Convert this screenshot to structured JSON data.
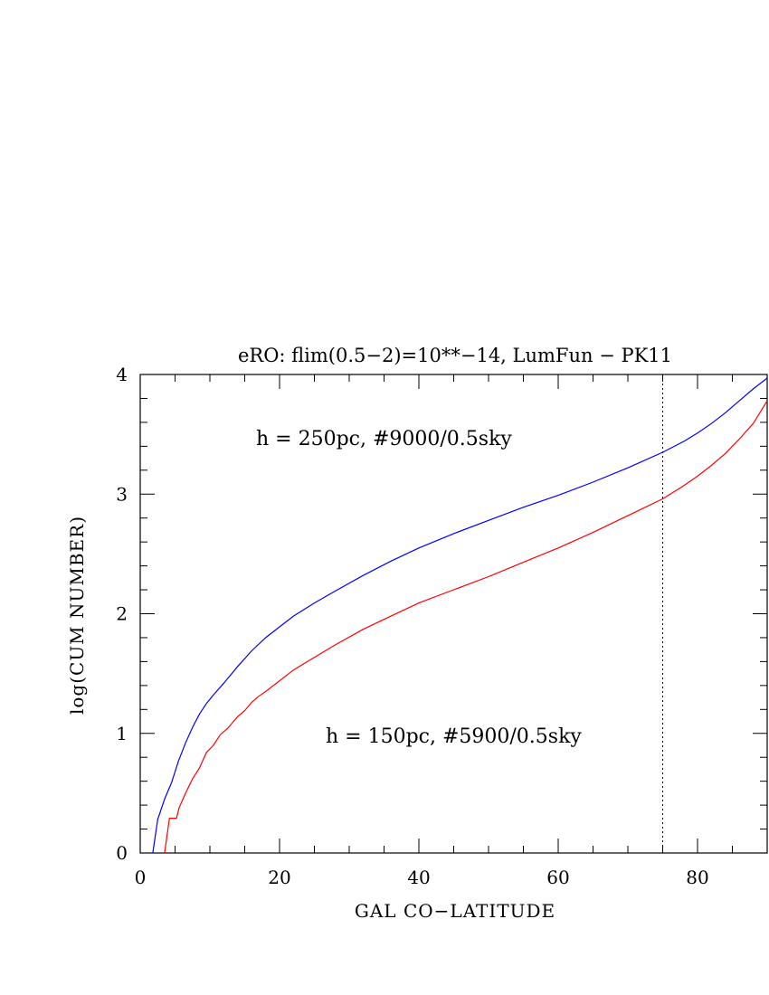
{
  "chart_data": {
    "type": "line",
    "title": "eRO:  flim(0.5−2)=10**−14,  LumFun  −  PK11",
    "xlabel": "GAL CO−LATITUDE",
    "ylabel": "log(CUM NUMBER)",
    "xlim": [
      0,
      90
    ],
    "ylim": [
      0,
      4
    ],
    "x_major_ticks": [
      0,
      20,
      40,
      60,
      80
    ],
    "x_tick_labels": [
      "0",
      "20",
      "40",
      "60",
      "80"
    ],
    "x_minor_step": 5,
    "y_major_ticks": [
      0,
      1,
      2,
      3,
      4
    ],
    "y_tick_labels": [
      "0",
      "1",
      "2",
      "3",
      "4"
    ],
    "y_minor_step": 0.2,
    "grid": false,
    "reference_line": {
      "x": 75,
      "style": "dotted",
      "color": "#000000"
    },
    "series": [
      {
        "color": "#0000ff",
        "x": [
          1.8,
          2.5,
          3.5,
          4.5,
          5.5,
          6.5,
          7.5,
          8.5,
          9.5,
          10.5,
          12,
          14,
          16,
          18,
          20,
          22,
          25,
          28,
          32,
          36,
          40,
          45,
          50,
          55,
          60,
          65,
          70,
          75,
          78,
          80,
          82,
          84,
          86,
          88,
          90
        ],
        "y": [
          0.0,
          0.28,
          0.45,
          0.59,
          0.77,
          0.92,
          1.05,
          1.16,
          1.25,
          1.32,
          1.42,
          1.56,
          1.69,
          1.8,
          1.89,
          1.98,
          2.09,
          2.19,
          2.32,
          2.44,
          2.55,
          2.67,
          2.78,
          2.89,
          2.99,
          3.1,
          3.22,
          3.35,
          3.44,
          3.51,
          3.59,
          3.68,
          3.78,
          3.88,
          3.97
        ]
      },
      {
        "color": "#ff0000",
        "x": [
          3.5,
          4.2,
          5.2,
          5.6,
          6.5,
          7.5,
          8.5,
          9.5,
          10.5,
          11.5,
          12.5,
          14,
          15,
          16,
          17,
          18,
          20,
          22,
          24,
          26,
          28,
          32,
          36,
          40,
          45,
          50,
          55,
          60,
          65,
          70,
          75,
          78,
          80,
          82,
          84,
          86,
          88,
          90
        ],
        "y": [
          0.0,
          0.29,
          0.29,
          0.38,
          0.5,
          0.62,
          0.71,
          0.84,
          0.9,
          0.99,
          1.04,
          1.14,
          1.19,
          1.26,
          1.31,
          1.35,
          1.44,
          1.53,
          1.6,
          1.67,
          1.74,
          1.87,
          1.98,
          2.09,
          2.2,
          2.31,
          2.43,
          2.55,
          2.68,
          2.82,
          2.96,
          3.07,
          3.15,
          3.24,
          3.34,
          3.46,
          3.59,
          3.78
        ]
      }
    ],
    "annotations": [
      {
        "text": "h  =  250pc,  #9000/0.5sky",
        "color": "#0000ff"
      },
      {
        "text": "h  =  150pc,  #5900/0.5sky",
        "color": "#ff0000"
      }
    ]
  }
}
